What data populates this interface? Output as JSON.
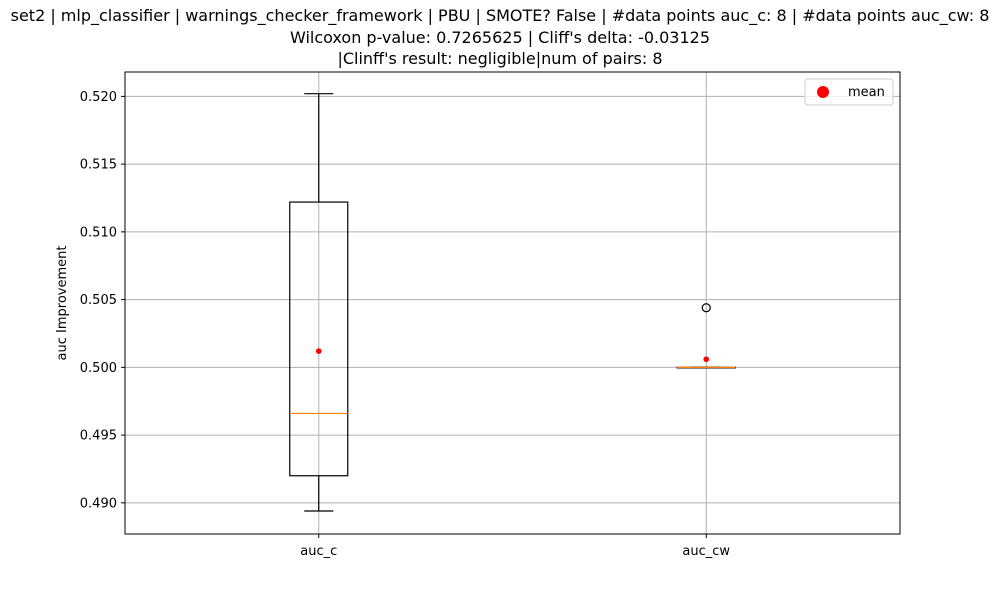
{
  "chart_data": {
    "type": "box",
    "title_lines": [
      "set2 | mlp_classifier | warnings_checker_framework | PBU | SMOTE? False | #data points auc_c: 8 | #data points auc_cw: 8",
      "Wilcoxon p-value: 0.7265625 | Cliff's delta: -0.03125",
      "|Clinff's result: negligible|num of pairs: 8"
    ],
    "ylabel": "auc Improvement",
    "xlabel": "",
    "ylim": [
      0.4877,
      0.5218
    ],
    "yticks": [
      "0.490",
      "0.495",
      "0.500",
      "0.505",
      "0.510",
      "0.515",
      "0.520"
    ],
    "ytick_values": [
      0.49,
      0.495,
      0.5,
      0.505,
      0.51,
      0.515,
      0.52
    ],
    "grid": true,
    "legend": {
      "placement": "upper-right",
      "entries": [
        {
          "label": "mean",
          "color": "#ff0000",
          "marker": "circle"
        }
      ]
    },
    "categories": [
      "auc_c",
      "auc_cw"
    ],
    "boxes": [
      {
        "label": "auc_c",
        "whisker_low": 0.4894,
        "q1": 0.492,
        "median": 0.4966,
        "q3": 0.5122,
        "whisker_high": 0.5202,
        "mean": 0.5012,
        "outliers": []
      },
      {
        "label": "auc_cw",
        "whisker_low": 0.5,
        "q1": 0.5,
        "median": 0.5,
        "q3": 0.5,
        "whisker_high": 0.5,
        "mean": 0.5006,
        "outliers": [
          0.5044
        ]
      }
    ],
    "colors": {
      "box": "#000000",
      "median": "#ff7f0e",
      "mean": "#ff0000",
      "grid": "#b0b0b0"
    }
  }
}
